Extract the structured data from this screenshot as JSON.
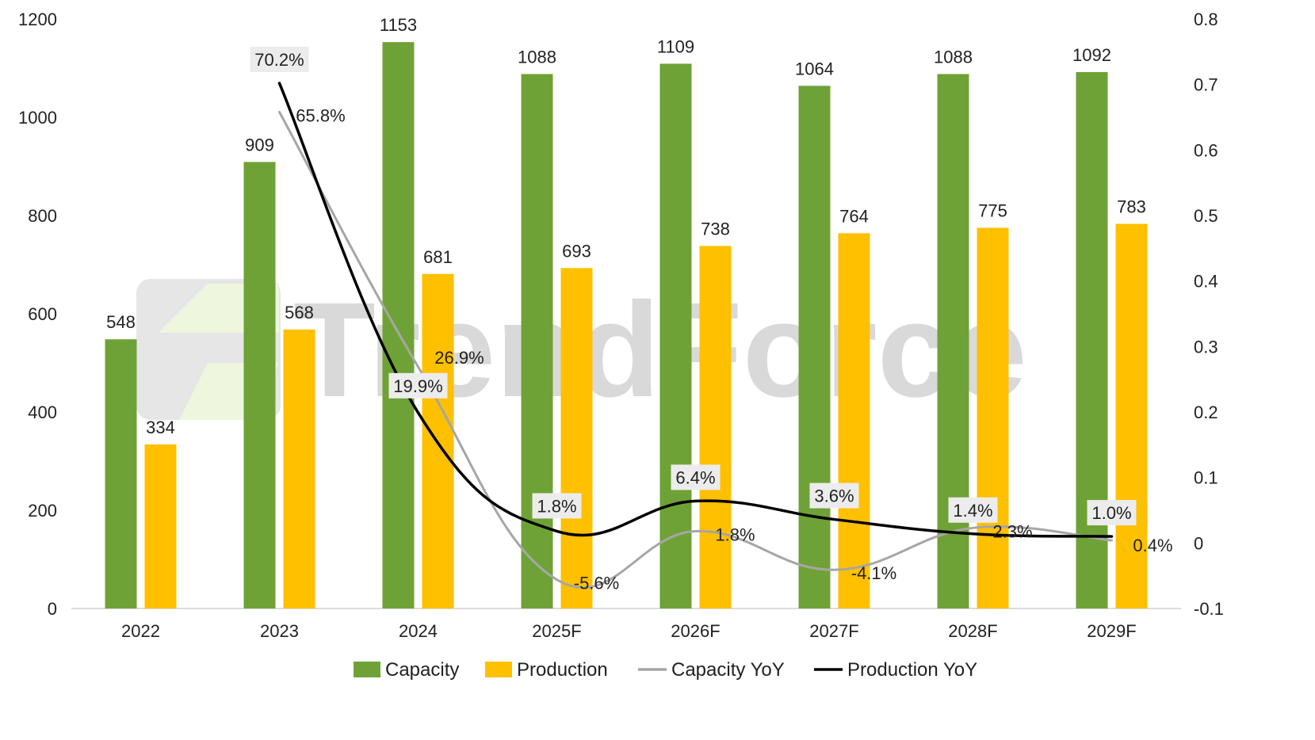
{
  "chart_data": {
    "type": "bar",
    "categories": [
      "2022",
      "2023",
      "2024",
      "2025F",
      "2026F",
      "2027F",
      "2028F",
      "2029F"
    ],
    "series": [
      {
        "name": "Capacity",
        "kind": "bar",
        "axis": "left",
        "color": "#6fa236",
        "values": [
          548,
          909,
          1153,
          1088,
          1109,
          1064,
          1088,
          1092
        ],
        "labels": [
          "548",
          "909",
          "1153",
          "1088",
          "1109",
          "1064",
          "1088",
          "1092"
        ]
      },
      {
        "name": "Production",
        "kind": "bar",
        "axis": "left",
        "color": "#ffc000",
        "values": [
          334,
          568,
          681,
          693,
          738,
          764,
          775,
          783
        ],
        "labels": [
          "334",
          "568",
          "681",
          "693",
          "738",
          "764",
          "775",
          "783"
        ]
      },
      {
        "name": "Capacity YoY",
        "kind": "line",
        "axis": "right",
        "color": "#a6a6a6",
        "values": [
          null,
          0.658,
          0.269,
          -0.056,
          0.018,
          -0.041,
          0.023,
          0.004
        ],
        "labels": [
          null,
          "65.8%",
          "26.9%",
          "-5.6%",
          "1.8%",
          "-4.1%",
          "2.3%",
          "0.4%"
        ]
      },
      {
        "name": "Production YoY",
        "kind": "line",
        "axis": "right",
        "color": "#000000",
        "values": [
          null,
          0.702,
          0.199,
          0.018,
          0.064,
          0.036,
          0.014,
          0.01
        ],
        "labels": [
          null,
          "70.2%",
          "19.9%",
          "1.8%",
          "6.4%",
          "3.6%",
          "1.4%",
          "1.0%"
        ]
      }
    ],
    "y_left": {
      "min": 0,
      "max": 1200,
      "ticks": [
        "0",
        "200",
        "400",
        "600",
        "800",
        "1000",
        "1200"
      ]
    },
    "y_right": {
      "min": -0.1,
      "max": 0.8,
      "ticks": [
        "-0.1",
        "0",
        "0.1",
        "0.2",
        "0.3",
        "0.4",
        "0.5",
        "0.6",
        "0.7",
        "0.8"
      ]
    },
    "grid": false,
    "legend_position": "bottom-center",
    "watermark": "TrendForce"
  }
}
